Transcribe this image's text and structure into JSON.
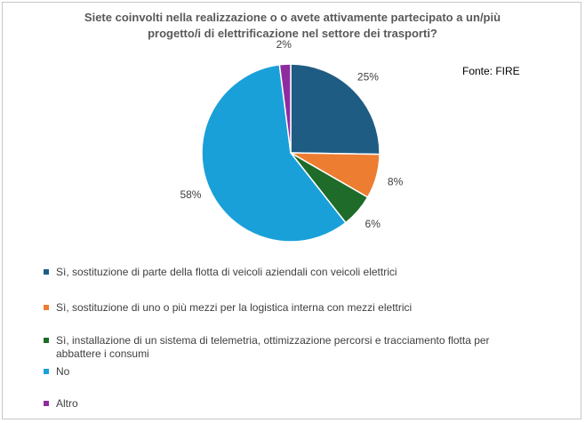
{
  "source": "Fonte: FIRE",
  "chart_data": {
    "type": "pie",
    "title": "Siete coinvolti nella realizzazione o o avete attivamente partecipato a un/più progetto/i di elettrificazione nel settore dei trasporti?",
    "title_lines": [
      "Siete coinvolti nella realizzazione o o avete attivamente partecipato a un/più",
      "progetto/i di elettrificazione nel settore dei trasporti?"
    ],
    "categories": [
      "Sì, sostituzione di parte della flotta di veicoli aziendali con veicoli elettrici",
      "Sì, sostituzione di uno o più mezzi per la logistica interna con mezzi elettrici",
      "Sì, installazione di un sistema di telemetria, ottimizzazione percorsi e tracciamento flotta per abbattere i consumi",
      "No",
      "Altro"
    ],
    "legend_lines": [
      [
        "Sì, sostituzione di parte della flotta di veicoli aziendali con veicoli elettrici"
      ],
      [
        "Sì, sostituzione di uno o più mezzi per la logistica interna con mezzi elettrici"
      ],
      [
        "Sì, installazione di un sistema di telemetria, ottimizzazione percorsi e tracciamento flotta per",
        "abbattere i consumi"
      ],
      [
        "No"
      ],
      [
        "Altro"
      ]
    ],
    "values": [
      25,
      8,
      6,
      58,
      2
    ],
    "value_labels": [
      "25%",
      "8%",
      "6%",
      "58%",
      "2%"
    ],
    "colors": [
      "#1f5c84",
      "#ed7d31",
      "#1e6b2a",
      "#1aa0d9",
      "#8e2c9e"
    ],
    "legend_position": "bottom"
  }
}
